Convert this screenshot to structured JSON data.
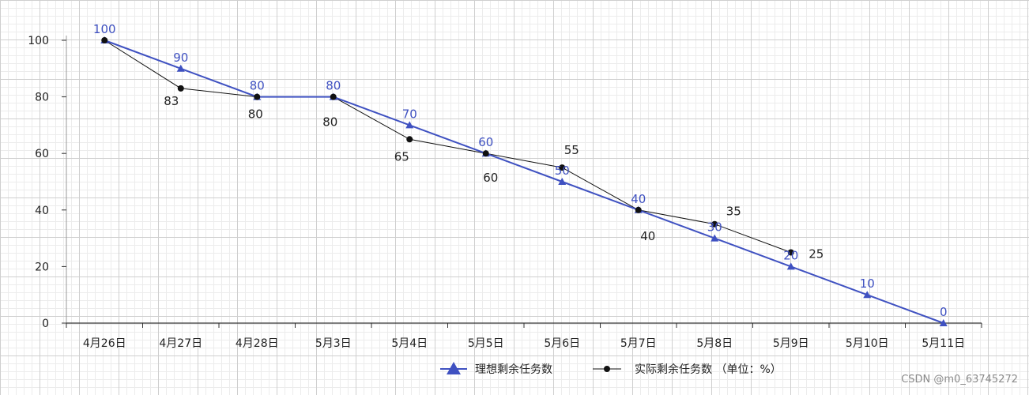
{
  "chart_data": {
    "type": "line",
    "categories": [
      "4月26日",
      "4月27日",
      "4月28日",
      "5月3日",
      "5月4日",
      "5月5日",
      "5月6日",
      "5月7日",
      "5月8日",
      "5月9日",
      "5月10日",
      "5月11日"
    ],
    "series": [
      {
        "name": "理想剩余任务数",
        "values": [
          100,
          90,
          80,
          80,
          70,
          60,
          50,
          40,
          30,
          20,
          10,
          0
        ],
        "color": "#3f51c1",
        "marker": "triangle"
      },
      {
        "name": "实际剩余任务数 （单位：%）",
        "values": [
          100,
          83,
          80,
          80,
          65,
          60,
          55,
          40,
          35,
          25,
          null,
          null
        ],
        "color": "#111111",
        "marker": "circle"
      }
    ],
    "ylim": [
      0,
      100
    ],
    "yticks": [
      0,
      20,
      40,
      60,
      80,
      100
    ],
    "grid": true,
    "legend_position": "bottom-center"
  },
  "watermark": "CSDN @m0_63745272"
}
